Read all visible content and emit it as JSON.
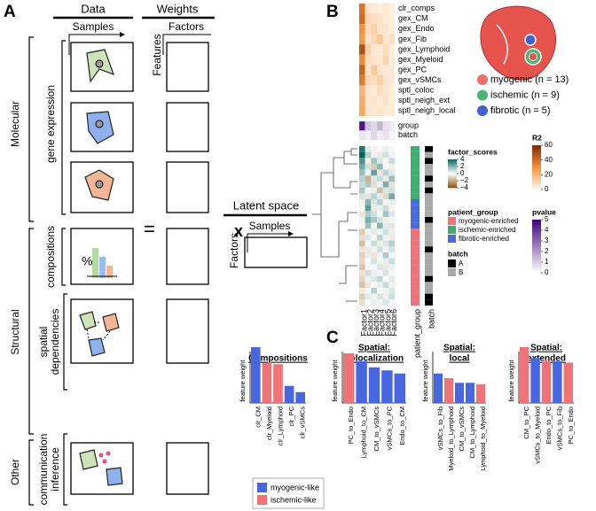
{
  "panel_a": {
    "letter": "A",
    "data_header": "Data",
    "weights_header": "Weights",
    "samples": "Samples",
    "features": "Features",
    "factors": "Factors",
    "equals": "=",
    "times": "x",
    "latent": {
      "title": "Latent space",
      "samples": "Samples",
      "factors": "Factors"
    },
    "views": {
      "molecular": "Molecular",
      "gene_expression": "gene expression",
      "structural": "Structural",
      "compositions": "compositions",
      "spatial": [
        "spatial",
        "dependencies"
      ],
      "other": "Other",
      "communication": [
        "communication",
        "inference"
      ],
      "percent": "%"
    }
  },
  "panel_b": {
    "letter": "B",
    "features": [
      "clr_comps",
      "gex_CM",
      "gex_Endo",
      "gex_Fib",
      "gex_Lymphoid",
      "gex_Myeloid",
      "gex_PC",
      "gex_vSMCs",
      "sptl_coloc",
      "sptl_neigh_ext",
      "sptl_neigh_local"
    ],
    "r2": [
      [
        38,
        6,
        4,
        3,
        5,
        2
      ],
      [
        40,
        10,
        8,
        6,
        4,
        3
      ],
      [
        30,
        8,
        12,
        5,
        6,
        3
      ],
      [
        28,
        6,
        10,
        14,
        5,
        8
      ],
      [
        48,
        12,
        5,
        4,
        8,
        3
      ],
      [
        32,
        8,
        6,
        5,
        10,
        4
      ],
      [
        42,
        7,
        14,
        6,
        4,
        5
      ],
      [
        36,
        10,
        8,
        12,
        6,
        4
      ],
      [
        20,
        6,
        4,
        8,
        5,
        3
      ],
      [
        22,
        5,
        6,
        4,
        7,
        3
      ],
      [
        24,
        6,
        5,
        6,
        4,
        4
      ]
    ],
    "meta_rows": [
      "group",
      "batch"
    ],
    "pvalues": [
      [
        4.6,
        1.2,
        0.8,
        1.5,
        0.6,
        0.4
      ],
      [
        0.5,
        0.3,
        0.8,
        0.4,
        0.6,
        0.2
      ]
    ],
    "factors": [
      "Factor1",
      "Factor2",
      "Factor3",
      "Factor4",
      "Factor5",
      "Factor6"
    ],
    "scores": [
      [
        3.5,
        0.5,
        -0.3,
        0.2,
        0.4,
        -0.2
      ],
      [
        4,
        1.2,
        0.3,
        -0.5,
        0.8,
        0.3
      ],
      [
        2.8,
        -0.4,
        1.5,
        0.6,
        -0.3,
        0.9
      ],
      [
        2.2,
        0.8,
        -1.2,
        1.8,
        0.2,
        -0.4
      ],
      [
        1.6,
        0.3,
        2.4,
        -0.6,
        1.1,
        0.5
      ],
      [
        1.2,
        -1.8,
        0.6,
        0.9,
        -0.5,
        1.6
      ],
      [
        0.9,
        1.4,
        -0.8,
        0.3,
        2.1,
        -0.7
      ],
      [
        1.4,
        0.2,
        0.4,
        -1.5,
        0.6,
        0.8
      ],
      [
        0.7,
        -0.6,
        1.1,
        0.5,
        -0.9,
        2.2
      ],
      [
        -0.4,
        1.9,
        0.6,
        1.2,
        -0.3,
        0.4
      ],
      [
        0.2,
        2.6,
        -0.5,
        0.4,
        0.9,
        -0.3
      ],
      [
        -0.6,
        1.3,
        0.8,
        -0.2,
        1.5,
        0.6
      ],
      [
        0.3,
        2.1,
        1.4,
        0.7,
        -0.4,
        0.2
      ],
      [
        -0.2,
        1.6,
        -0.3,
        1.9,
        0.5,
        -0.6
      ],
      [
        -1.2,
        -0.3,
        0.5,
        0.2,
        0.8,
        0.4
      ],
      [
        -0.8,
        0.6,
        -0.2,
        1.1,
        0.3,
        -0.5
      ],
      [
        -1.5,
        0.2,
        0.9,
        -0.4,
        0.6,
        1.2
      ],
      [
        -0.6,
        -0.5,
        0.3,
        0.8,
        -0.2,
        0.7
      ],
      [
        -1.1,
        0.4,
        -0.6,
        0.3,
        1.3,
        0.2
      ],
      [
        -0.9,
        0.1,
        0.7,
        -0.3,
        0.4,
        0.9
      ],
      [
        -1.3,
        -0.2,
        0.2,
        0.6,
        -0.5,
        0.3
      ],
      [
        -0.7,
        0.8,
        -0.4,
        0.2,
        0.7,
        -0.2
      ],
      [
        -1,
        0.3,
        0.6,
        1,
        0.1,
        0.5
      ],
      [
        -1.4,
        -0.6,
        0.1,
        0.4,
        0.9,
        -0.3
      ],
      [
        -0.5,
        0.2,
        1.2,
        -0.2,
        0.3,
        0.6
      ],
      [
        -1.2,
        0.5,
        -0.3,
        0.7,
        -0.4,
        0.8
      ],
      [
        -0.8,
        -0.1,
        0.4,
        0.3,
        0.6,
        0.2
      ]
    ],
    "sample_group": [
      1,
      1,
      1,
      1,
      1,
      1,
      1,
      1,
      1,
      2,
      2,
      2,
      2,
      2,
      0,
      0,
      0,
      0,
      0,
      0,
      0,
      0,
      0,
      0,
      0,
      0,
      0
    ],
    "sample_batch": [
      0,
      1,
      0,
      1,
      1,
      0,
      1,
      0,
      1,
      1,
      1,
      1,
      0,
      1,
      1,
      1,
      1,
      0,
      1,
      1,
      1,
      1,
      0,
      1,
      1,
      0,
      0
    ],
    "patient_group_label": "patient_group",
    "batch_label": "batch",
    "patient_groups": [
      {
        "name": "myogenic-enriched",
        "color": "#f0737a"
      },
      {
        "name": "ischemic-enriched",
        "color": "#3cae6e"
      },
      {
        "name": "fibrotic-enriched",
        "color": "#4a6ae0"
      }
    ],
    "batches": [
      {
        "name": "A",
        "color": "#000000"
      },
      {
        "name": "B",
        "color": "#a8a8a8"
      }
    ],
    "legend_titles": {
      "factor_scores": "factor_scores",
      "r2": "R2",
      "patient_group": "patient_group",
      "pvalue": "pvalue",
      "batch": "batch"
    },
    "score_lim": [
      -4,
      4
    ],
    "score_ticks": [
      4,
      2,
      0,
      {
        "value": -2,
        "label": "−2"
      },
      {
        "value": -4,
        "label": "−4"
      }
    ],
    "r2_lim": [
      0,
      60
    ],
    "r2_ticks": [
      60,
      40,
      20,
      0
    ],
    "p_lim": [
      0,
      5
    ],
    "p_ticks": [
      5,
      4,
      3,
      2,
      1,
      0
    ],
    "cohorts": [
      {
        "label": "myogenic (n = 13)",
        "color": "#ee6f6b"
      },
      {
        "label": "ischemic (n = 9)",
        "color": "#47b574"
      },
      {
        "label": "fibrotic (n = 5)",
        "color": "#3f5fd6"
      }
    ]
  },
  "panel_c": {
    "letter": "C",
    "legend": [
      {
        "name": "myogenic-like",
        "color": "#4866e0"
      },
      {
        "name": "ischemic-like",
        "color": "#f0737a"
      }
    ]
  },
  "chart_data": [
    {
      "type": "bar",
      "title": [
        "Compositions"
      ],
      "ylabel": "feature weight",
      "categories": [
        "clr_CM",
        "clr_Myeloid",
        "clr_Lymphoid",
        "clr_PC",
        "clr_vSMCs"
      ],
      "values": [
        0.36,
        0.26,
        0.25,
        0.11,
        0.07
      ],
      "colors": [
        "#4866e0",
        "#f0737a",
        "#f0737a",
        "#4866e0",
        "#4866e0"
      ],
      "ylim": [
        0,
        0.4
      ]
    },
    {
      "type": "bar",
      "title": [
        "Spatial:",
        "colocalization"
      ],
      "ylabel": "feature weight",
      "categories": [
        "PC_to_Endo",
        "Lymphoid_to_CM",
        "CM_to_vSMCs",
        "vSMCs_to_PC",
        "Endo_to_CM"
      ],
      "values": [
        0.32,
        0.27,
        0.23,
        0.21,
        0.19
      ],
      "colors": [
        "#f0737a",
        "#4866e0",
        "#4866e0",
        "#4866e0",
        "#4866e0"
      ],
      "ylim": [
        0,
        0.4
      ]
    },
    {
      "type": "bar",
      "title": [
        "Spatial:",
        "local"
      ],
      "ylabel": "feature weight",
      "categories": [
        "vSMCs_to_Fib",
        "Myeloid_to_Lymphoid",
        "CM_to_vSMCs",
        "CM_to_Lymphoid",
        "Lymphoid_to_Myeloid"
      ],
      "values": [
        0.19,
        0.16,
        0.13,
        0.13,
        0.12
      ],
      "colors": [
        "#4866e0",
        "#f0737a",
        "#4866e0",
        "#4866e0",
        "#f0737a"
      ],
      "ylim": [
        0,
        0.4
      ]
    },
    {
      "type": "bar",
      "title": [
        "Spatial:",
        "extended"
      ],
      "ylabel": "feature weight",
      "categories": [
        "CM_to_PC",
        "vSMCs_to_Myeloid",
        "Endo_to_PC",
        "vSMCs_to_Fib",
        "PC_to_Endo"
      ],
      "values": [
        0.36,
        0.29,
        0.27,
        0.27,
        0.26
      ],
      "colors": [
        "#f0737a",
        "#4866e0",
        "#f0737a",
        "#4866e0",
        "#f0737a"
      ],
      "ylim": [
        0,
        0.4
      ]
    }
  ]
}
